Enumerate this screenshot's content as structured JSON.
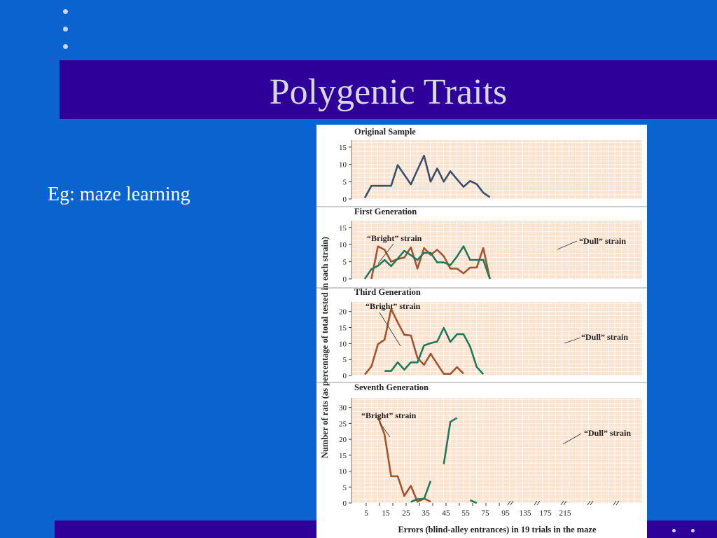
{
  "slide": {
    "title": "Polygenic Traits",
    "body": "Eg: maze learning"
  },
  "colors": {
    "background": "#0a63cf",
    "band": "#2e0099",
    "panel": "#fbe3cf",
    "original": "#3b4e6e",
    "bright": "#a4532f",
    "dull": "#1e7a5b"
  },
  "chart_data": {
    "type": "line",
    "ylabel": "Number of rats (as percentage of total tested in each strain)",
    "xlabel": "Errors (blind-alley entrances) in 19 trials in the maze",
    "x_ticks": [
      "5",
      "15",
      "25",
      "35",
      "45",
      "55",
      "75",
      "95",
      "135",
      "175",
      "215"
    ],
    "x": [
      5,
      10,
      15,
      20,
      25,
      30,
      35,
      40,
      45,
      50,
      55,
      60,
      65,
      70,
      75,
      80,
      85,
      90,
      95,
      100,
      110,
      115,
      135,
      175,
      215
    ],
    "panels": [
      {
        "title": "Original Sample",
        "ylim": [
          0,
          17
        ],
        "yticks": [
          0,
          5,
          10,
          15
        ],
        "series": [
          {
            "values": [
              0.3,
              3.8,
              3.8,
              3.8,
              3.8,
              9.8,
              7,
              4.2,
              8.4,
              12.5,
              5,
              8.8,
              5,
              8,
              5.7,
              3.5,
              5.2,
              4.3,
              1.8,
              0.5
            ]
          }
        ]
      },
      {
        "title": "First Generation",
        "ylim": [
          0,
          17
        ],
        "yticks": [
          0,
          5,
          10,
          15
        ],
        "series": [
          {
            "name": "“Bright” strain",
            "values": [
              null,
              0,
              9.5,
              8.5,
              5,
              5.8,
              6.2,
              9.2,
              3,
              9,
              7,
              8.5,
              6.6,
              3,
              3,
              1.6,
              3.3,
              3.3,
              9,
              0
            ]
          },
          {
            "name": "“Dull” strain",
            "values": [
              0,
              2.8,
              3.8,
              5.5,
              3.7,
              5.9,
              8.2,
              6.9,
              5.5,
              7.6,
              7.6,
              4.8,
              4.8,
              4,
              6.5,
              9.5,
              5.5,
              5.5,
              5.5,
              0
            ]
          }
        ]
      },
      {
        "title": "Third Generation",
        "ylim": [
          0,
          23
        ],
        "yticks": [
          0,
          5,
          10,
          15,
          20
        ],
        "series": [
          {
            "name": "“Bright” strain",
            "values": [
              0.3,
              2.8,
              9.8,
              11.2,
              20.8,
              16.6,
              12.7,
              12.5,
              5.5,
              3.3,
              6.8,
              3.6,
              0.5,
              0.5,
              2.6,
              0.6
            ]
          },
          {
            "name": "“Dull” strain",
            "values": [
              null,
              null,
              null,
              1.4,
              1.4,
              4.1,
              1.8,
              4.1,
              4.1,
              9.4,
              10.1,
              10.6,
              14.9,
              10.5,
              12.9,
              12.9,
              9,
              2.7,
              0.4
            ]
          }
        ]
      },
      {
        "title": "Seventh Generation",
        "ylim": [
          0,
          33
        ],
        "yticks": [
          0,
          5,
          10,
          15,
          20,
          25,
          30
        ],
        "series": [
          {
            "name": "“Bright” strain",
            "values": [
              0,
              null,
              27,
              21.5,
              8.4,
              8.4,
              2.2,
              5.4,
              0.4,
              1.4,
              0.4
            ]
          },
          {
            "name": "“Dull” strain",
            "values": [
              null,
              null,
              null,
              null,
              null,
              null,
              null,
              0.3,
              1.2,
              1.3,
              6.9,
              null,
              12.2,
              25.5,
              26.7,
              null,
              0.9,
              0
            ]
          }
        ]
      }
    ]
  }
}
